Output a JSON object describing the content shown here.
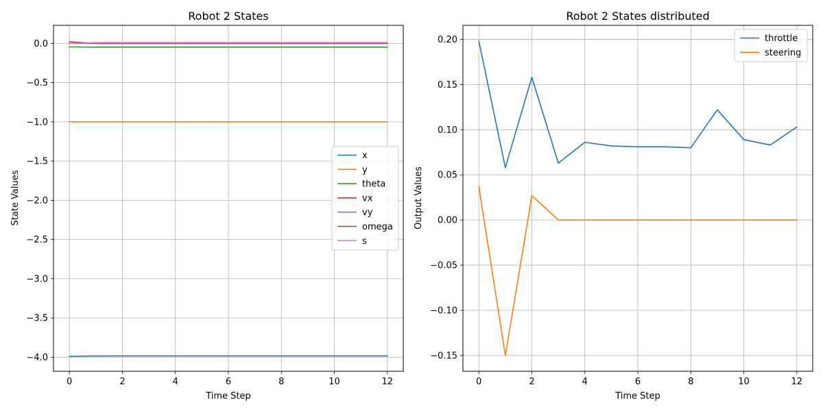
{
  "chart_data": [
    {
      "type": "line",
      "title": "Robot 2 States",
      "xlabel": "Time Step",
      "ylabel": "State Values",
      "xlim": [
        -0.6,
        12.6
      ],
      "ylim": [
        -4.18,
        0.23
      ],
      "xticks": [
        0,
        2,
        4,
        6,
        8,
        10,
        12
      ],
      "xtick_labels": [
        "0",
        "2",
        "4",
        "6",
        "8",
        "10",
        "12"
      ],
      "yticks": [
        0.0,
        -0.5,
        -1.0,
        -1.5,
        -2.0,
        -2.5,
        -3.0,
        -3.5,
        -4.0
      ],
      "ytick_labels": [
        "0.0",
        "−0.5",
        "−1.0",
        "−1.5",
        "−2.0",
        "−2.5",
        "−3.0",
        "−3.5",
        "−4.0"
      ],
      "grid": true,
      "legend_position": "center-right",
      "x": [
        0,
        1,
        2,
        3,
        4,
        5,
        6,
        7,
        8,
        9,
        10,
        11,
        12
      ],
      "series": [
        {
          "name": "x",
          "color": "#1f77b4",
          "values": [
            -3.99,
            -3.985,
            -3.984,
            -3.984,
            -3.984,
            -3.984,
            -3.984,
            -3.984,
            -3.984,
            -3.984,
            -3.984,
            -3.984,
            -3.984
          ]
        },
        {
          "name": "y",
          "color": "#ff7f0e",
          "values": [
            -1.0,
            -1.0,
            -1.0,
            -1.0,
            -1.0,
            -1.0,
            -1.0,
            -1.0,
            -1.0,
            -1.0,
            -1.0,
            -1.0,
            -1.0
          ]
        },
        {
          "name": "theta",
          "color": "#2ca02c",
          "values": [
            -0.045,
            -0.048,
            -0.048,
            -0.048,
            -0.048,
            -0.048,
            -0.048,
            -0.048,
            -0.048,
            -0.048,
            -0.048,
            -0.048,
            -0.048
          ]
        },
        {
          "name": "vx",
          "color": "#d62728",
          "values": [
            0.02,
            0.0,
            0.0,
            0.0,
            0.0,
            0.0,
            0.0,
            0.0,
            0.0,
            0.0,
            0.0,
            0.0,
            0.0
          ]
        },
        {
          "name": "vy",
          "color": "#9467bd",
          "values": [
            0.0,
            0.0,
            0.0,
            0.0,
            0.0,
            0.0,
            0.0,
            0.0,
            0.0,
            0.0,
            0.0,
            0.0,
            0.0
          ]
        },
        {
          "name": "omega",
          "color": "#8c564b",
          "values": [
            0.0,
            0.0,
            0.0,
            0.0,
            0.0,
            0.0,
            0.0,
            0.0,
            0.0,
            0.0,
            0.0,
            0.0,
            0.0
          ]
        },
        {
          "name": "s",
          "color": "#e377c2",
          "values": [
            0.0,
            0.01,
            0.01,
            0.01,
            0.01,
            0.01,
            0.01,
            0.01,
            0.01,
            0.01,
            0.01,
            0.01,
            0.01
          ]
        }
      ]
    },
    {
      "type": "line",
      "title": "Robot 2 States distributed",
      "xlabel": "Time Step",
      "ylabel": "Output Values",
      "xlim": [
        -0.6,
        12.6
      ],
      "ylim": [
        -0.1675,
        0.2155
      ],
      "xticks": [
        0,
        2,
        4,
        6,
        8,
        10,
        12
      ],
      "xtick_labels": [
        "0",
        "2",
        "4",
        "6",
        "8",
        "10",
        "12"
      ],
      "yticks": [
        0.2,
        0.15,
        0.1,
        0.05,
        0.0,
        -0.05,
        -0.1,
        -0.15
      ],
      "ytick_labels": [
        "0.20",
        "0.15",
        "0.10",
        "0.05",
        "0.00",
        "−0.05",
        "−0.10",
        "−0.15"
      ],
      "grid": true,
      "legend_position": "top-right",
      "x": [
        0,
        1,
        2,
        3,
        4,
        5,
        6,
        7,
        8,
        9,
        10,
        11,
        12
      ],
      "series": [
        {
          "name": "throttle",
          "color": "#1f77b4",
          "values": [
            0.198,
            0.058,
            0.158,
            0.063,
            0.086,
            0.082,
            0.081,
            0.081,
            0.08,
            0.122,
            0.089,
            0.083,
            0.103
          ]
        },
        {
          "name": "steering",
          "color": "#ff7f0e",
          "values": [
            0.037,
            -0.15,
            0.027,
            0.0,
            0.0,
            0.0,
            0.0,
            0.0,
            0.0,
            0.0,
            0.0,
            0.0,
            0.0
          ]
        }
      ]
    }
  ]
}
